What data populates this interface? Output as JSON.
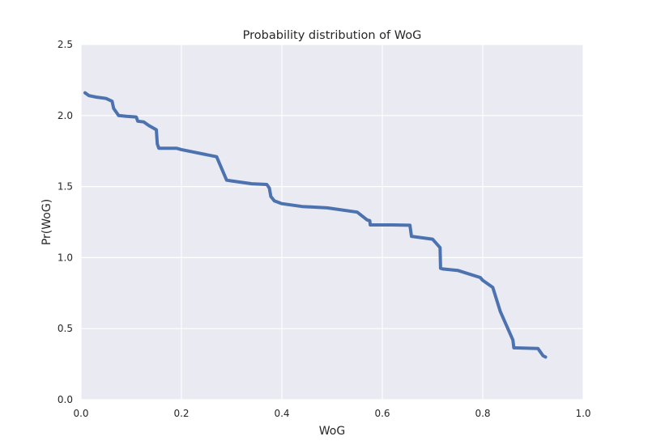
{
  "chart_data": {
    "type": "line",
    "title": "Probability distribution of WoG",
    "xlabel": "WoG",
    "ylabel": "Pr(WoG)",
    "xlim": [
      0.0,
      1.0
    ],
    "ylim": [
      0.0,
      2.5
    ],
    "xticks": [
      0.0,
      0.2,
      0.4,
      0.6,
      0.8,
      1.0
    ],
    "xtick_labels": [
      "0.0",
      "0.2",
      "0.4",
      "0.6",
      "0.8",
      "1.0"
    ],
    "yticks": [
      0.0,
      0.5,
      1.0,
      1.5,
      2.0,
      2.5
    ],
    "ytick_labels": [
      "0.0",
      "0.5",
      "1.0",
      "1.5",
      "2.0",
      "2.5"
    ],
    "grid": true,
    "line_color": "#4c72b0",
    "background_color": "#eaeaf2",
    "series": [
      {
        "x": [
          0.008,
          0.016,
          0.03,
          0.05,
          0.062,
          0.065,
          0.075,
          0.09,
          0.11,
          0.113,
          0.125,
          0.135,
          0.15,
          0.152,
          0.155,
          0.19,
          0.2,
          0.27,
          0.29,
          0.3,
          0.34,
          0.37,
          0.375,
          0.378,
          0.385,
          0.4,
          0.44,
          0.49,
          0.55,
          0.57,
          0.575,
          0.576,
          0.62,
          0.655,
          0.658,
          0.7,
          0.715,
          0.716,
          0.72,
          0.75,
          0.795,
          0.8,
          0.82,
          0.835,
          0.855,
          0.86,
          0.862,
          0.91,
          0.92,
          0.925
        ],
        "y": [
          2.16,
          2.14,
          2.13,
          2.12,
          2.1,
          2.05,
          2.0,
          1.995,
          1.99,
          1.96,
          1.955,
          1.93,
          1.9,
          1.8,
          1.77,
          1.77,
          1.76,
          1.71,
          1.545,
          1.54,
          1.52,
          1.515,
          1.49,
          1.43,
          1.4,
          1.38,
          1.36,
          1.35,
          1.32,
          1.265,
          1.26,
          1.23,
          1.23,
          1.228,
          1.15,
          1.13,
          1.07,
          0.925,
          0.92,
          0.91,
          0.86,
          0.84,
          0.79,
          0.62,
          0.46,
          0.42,
          0.365,
          0.36,
          0.31,
          0.3
        ]
      }
    ]
  }
}
